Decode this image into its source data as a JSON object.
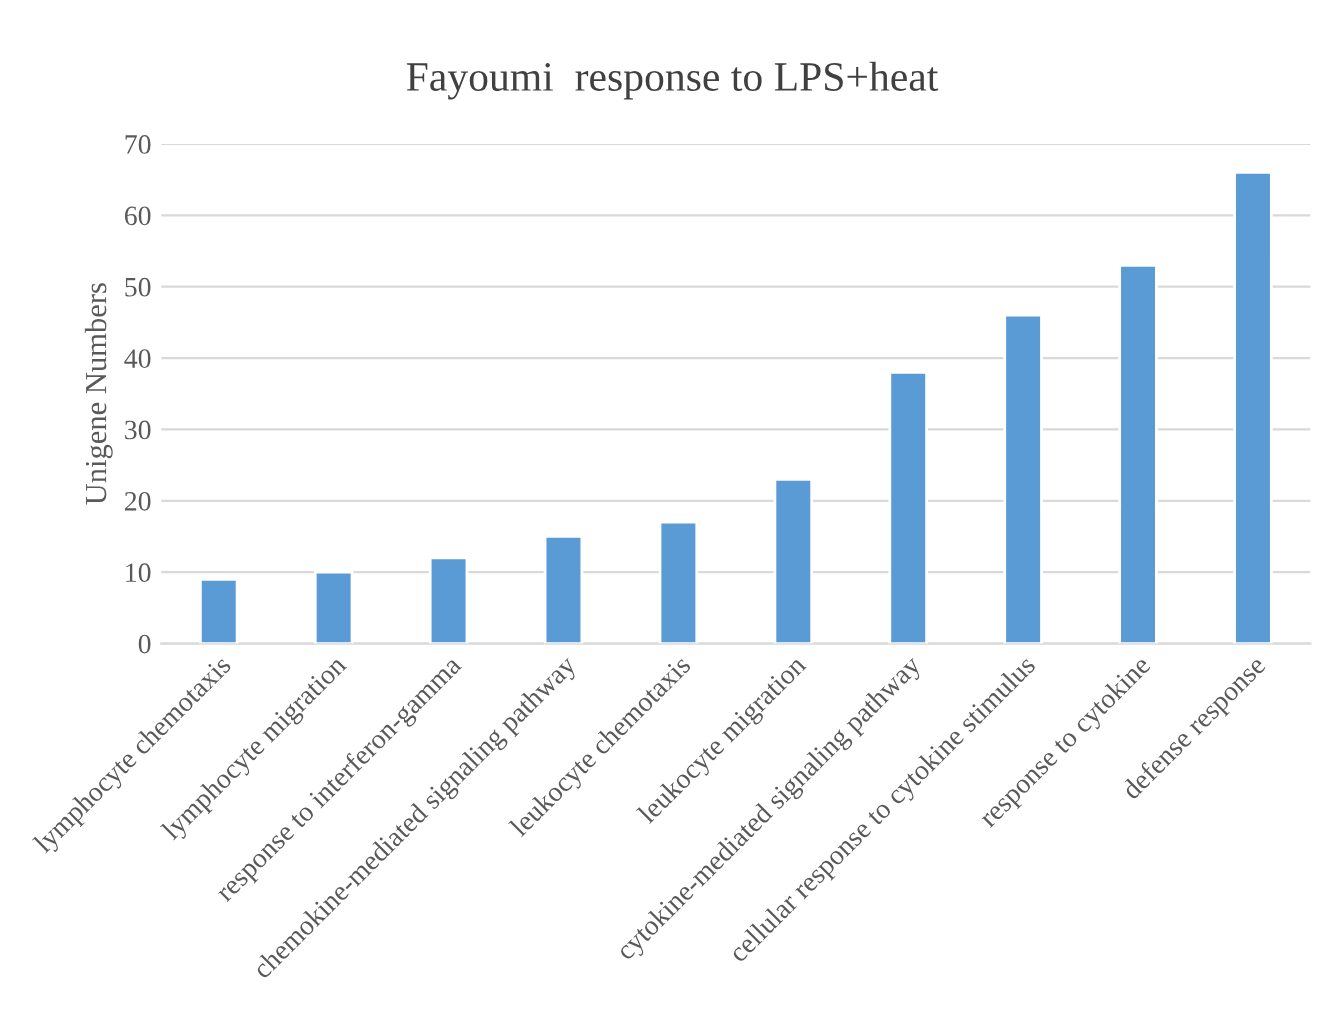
{
  "chart_data": {
    "type": "bar",
    "title": "Fayoumi  response to LPS+heat",
    "ylabel": "Unigene Numbers",
    "categories": [
      "lymphocyte chemotaxis",
      "lymphocyte migration",
      "response to interferon-gamma",
      "chemokine-mediated signaling pathway",
      "leukocyte chemotaxis",
      "leukocyte migration",
      "cytokine-mediated signaling pathway",
      "cellular response to cytokine stimulus",
      "response to cytokine",
      "defense response"
    ],
    "values": [
      9,
      10,
      12,
      15,
      17,
      23,
      38,
      46,
      53,
      66
    ],
    "color": "#5b9bd5",
    "ylim": [
      0,
      70
    ],
    "yticks": [
      0,
      10,
      20,
      30,
      40,
      50,
      60,
      70
    ],
    "grid": "y",
    "legend": false
  }
}
